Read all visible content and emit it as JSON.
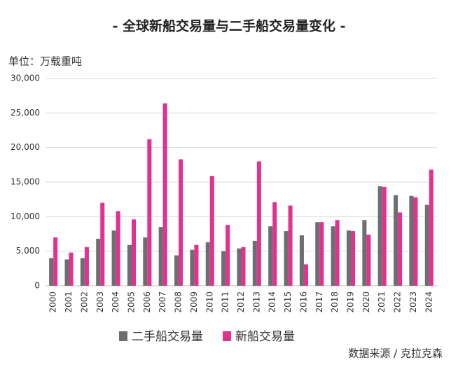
{
  "chart_data": {
    "type": "bar",
    "title": "- 全球新船交易量与二手船交易量变化 -",
    "unit_label": "单位：万载重吨",
    "source": "数据来源 / 克拉克森",
    "categories": [
      "2000",
      "2001",
      "2002",
      "2003",
      "2004",
      "2005",
      "2006",
      "2007",
      "2008",
      "2009",
      "2010",
      "2011",
      "2012",
      "2013",
      "2014",
      "2015",
      "2016",
      "2017",
      "2018",
      "2019",
      "2020",
      "2021",
      "2022",
      "2023",
      "2024"
    ],
    "series": [
      {
        "name": "二手船交易量",
        "color": "#6d6e70",
        "values": [
          4000,
          3800,
          4000,
          6800,
          8000,
          5900,
          7000,
          8500,
          4400,
          5200,
          6300,
          5000,
          5400,
          6500,
          8600,
          7900,
          7300,
          9200,
          8600,
          8000,
          9500,
          14400,
          13100,
          13000,
          11700
        ]
      },
      {
        "name": "新船交易量",
        "color": "#e0338f",
        "values": [
          7000,
          4800,
          5600,
          12000,
          10800,
          9600,
          21200,
          26400,
          18300,
          5900,
          15900,
          8800,
          5600,
          18000,
          12100,
          11600,
          3100,
          9200,
          9500,
          7900,
          7400,
          14300,
          10600,
          12800,
          16800
        ]
      }
    ],
    "ylim": [
      0,
      30000
    ],
    "yticks": [
      0,
      {
        "value": 5000,
        "label": "5,000"
      },
      {
        "value": 10000,
        "label": "10,000"
      },
      {
        "value": 15000,
        "label": "15,000"
      },
      {
        "value": 20000,
        "label": "20,000"
      },
      {
        "value": 25000,
        "label": "25,000"
      },
      {
        "value": 30000,
        "label": "30,000"
      }
    ],
    "grid": true
  }
}
